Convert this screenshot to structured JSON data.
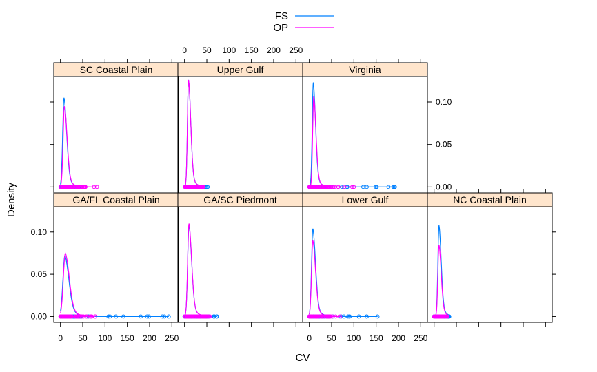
{
  "chart_data": {
    "type": "line",
    "plot_kind": "density plot with rug points, lattice panels",
    "xlabel": "CV",
    "ylabel": "Density",
    "xlim": [
      -15,
      265
    ],
    "ylim": [
      -0.007,
      0.13
    ],
    "x_ticks": [
      0,
      50,
      100,
      150,
      200,
      250
    ],
    "y_ticks": [
      0.0,
      0.05,
      0.1
    ],
    "y_tick_labels": [
      "0.00",
      "0.05",
      "0.10"
    ],
    "legend": {
      "placement": "top",
      "entries": [
        {
          "name": "FS",
          "color": "#0080ff"
        },
        {
          "name": "OP",
          "color": "#ff00ff"
        }
      ]
    },
    "strip_color": "#ffe5cc",
    "panels": [
      {
        "title": "SC Coastal Plain",
        "row": 0,
        "col": 0,
        "series": [
          {
            "name": "FS",
            "peak_x": 8,
            "peak_y": 0.105,
            "min_x": 0,
            "max_x": 48,
            "spread": 6
          },
          {
            "name": "OP",
            "peak_x": 9,
            "peak_y": 0.095,
            "min_x": 0,
            "max_x": 82,
            "spread": 6
          }
        ]
      },
      {
        "title": "Upper  Gulf",
        "row": 0,
        "col": 1,
        "series": [
          {
            "name": "FS",
            "peak_x": 9,
            "peak_y": 0.126,
            "min_x": 1,
            "max_x": 52,
            "spread": 5
          },
          {
            "name": "OP",
            "peak_x": 9,
            "peak_y": 0.126,
            "min_x": 1,
            "max_x": 42,
            "spread": 5
          }
        ]
      },
      {
        "title": "Virginia",
        "row": 0,
        "col": 2,
        "series": [
          {
            "name": "FS",
            "peak_x": 9,
            "peak_y": 0.123,
            "min_x": 0,
            "max_x": 192,
            "spread": 5
          },
          {
            "name": "OP",
            "peak_x": 10,
            "peak_y": 0.107,
            "min_x": 0,
            "max_x": 100,
            "spread": 5
          }
        ]
      },
      {
        "title": "GA/FL Coastal Plain",
        "row": 1,
        "col": 0,
        "series": [
          {
            "name": "FS",
            "peak_x": 10,
            "peak_y": 0.072,
            "min_x": 0,
            "max_x": 243,
            "spread": 9
          },
          {
            "name": "OP",
            "peak_x": 11,
            "peak_y": 0.075,
            "min_x": 0,
            "max_x": 78,
            "spread": 9
          }
        ]
      },
      {
        "title": "GA/SC Piedmont",
        "row": 1,
        "col": 1,
        "series": [
          {
            "name": "FS",
            "peak_x": 10,
            "peak_y": 0.108,
            "min_x": 0,
            "max_x": 73,
            "spread": 6
          },
          {
            "name": "OP",
            "peak_x": 10,
            "peak_y": 0.11,
            "min_x": 0,
            "max_x": 57,
            "spread": 6
          }
        ]
      },
      {
        "title": "Lower Gulf",
        "row": 1,
        "col": 2,
        "series": [
          {
            "name": "FS",
            "peak_x": 8,
            "peak_y": 0.104,
            "min_x": 0,
            "max_x": 153,
            "spread": 6
          },
          {
            "name": "OP",
            "peak_x": 8,
            "peak_y": 0.09,
            "min_x": 0,
            "max_x": 69,
            "spread": 6
          }
        ]
      },
      {
        "title": "NC Coastal Plain",
        "row": 1,
        "col": 3,
        "series": [
          {
            "name": "FS",
            "peak_x": 11,
            "peak_y": 0.108,
            "min_x": 0,
            "max_x": 34,
            "spread": 5
          },
          {
            "name": "OP",
            "peak_x": 11,
            "peak_y": 0.085,
            "min_x": 0,
            "max_x": 30,
            "spread": 5
          }
        ]
      }
    ]
  }
}
